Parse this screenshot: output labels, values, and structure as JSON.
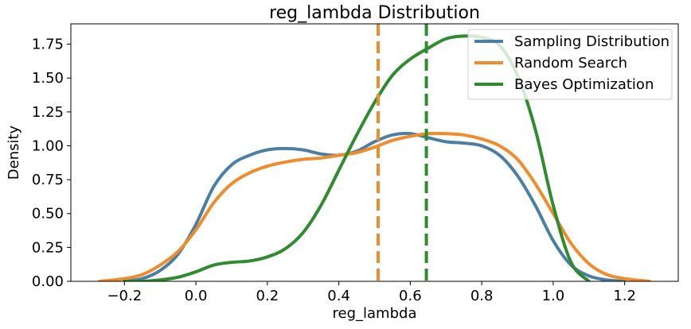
{
  "chart_data": {
    "type": "line",
    "title": "reg_lambda Distribution",
    "xlabel": "reg_lambda",
    "ylabel": "Density",
    "xlim": [
      -0.35,
      1.35
    ],
    "ylim": [
      0,
      1.9
    ],
    "xticks": [
      -0.2,
      0.0,
      0.2,
      0.4,
      0.6,
      0.8,
      1.0,
      1.2
    ],
    "xtick_labels": [
      "−0.2",
      "0.0",
      "0.2",
      "0.4",
      "0.6",
      "0.8",
      "1.0",
      "1.2"
    ],
    "yticks": [
      0,
      0.25,
      0.5,
      0.75,
      1.0,
      1.25,
      1.5,
      1.75
    ],
    "ytick_labels": [
      "0.00",
      "0.25",
      "0.50",
      "0.75",
      "1.00",
      "1.25",
      "1.50",
      "1.75"
    ],
    "grid": false,
    "legend_position": "top-right",
    "series": [
      {
        "name": "Sampling Distribution",
        "color": "#4a7fa3",
        "x": [
          -0.2,
          -0.15,
          -0.1,
          -0.05,
          0.0,
          0.05,
          0.1,
          0.15,
          0.2,
          0.25,
          0.3,
          0.35,
          0.4,
          0.45,
          0.5,
          0.55,
          0.6,
          0.65,
          0.7,
          0.75,
          0.8,
          0.85,
          0.9,
          0.95,
          1.0,
          1.05,
          1.1,
          1.15,
          1.2
        ],
        "y": [
          0.0,
          0.02,
          0.08,
          0.2,
          0.42,
          0.7,
          0.86,
          0.93,
          0.97,
          0.98,
          0.97,
          0.94,
          0.93,
          0.96,
          1.03,
          1.08,
          1.09,
          1.06,
          1.03,
          1.02,
          1.0,
          0.93,
          0.78,
          0.56,
          0.3,
          0.12,
          0.04,
          0.01,
          0.0
        ]
      },
      {
        "name": "Random Search",
        "color": "#f08c2c",
        "x": [
          -0.27,
          -0.2,
          -0.15,
          -0.1,
          -0.05,
          0.0,
          0.05,
          0.1,
          0.15,
          0.2,
          0.25,
          0.3,
          0.35,
          0.4,
          0.45,
          0.5,
          0.55,
          0.6,
          0.65,
          0.7,
          0.75,
          0.8,
          0.85,
          0.9,
          0.95,
          1.0,
          1.05,
          1.1,
          1.15,
          1.2,
          1.27
        ],
        "y": [
          0.0,
          0.02,
          0.05,
          0.12,
          0.22,
          0.38,
          0.58,
          0.72,
          0.8,
          0.85,
          0.88,
          0.9,
          0.91,
          0.93,
          0.95,
          0.99,
          1.04,
          1.07,
          1.09,
          1.09,
          1.08,
          1.05,
          1.0,
          0.9,
          0.72,
          0.5,
          0.28,
          0.13,
          0.05,
          0.02,
          0.0
        ]
      },
      {
        "name": "Bayes Optimization",
        "color": "#2e8b2e",
        "x": [
          -0.2,
          -0.15,
          -0.1,
          -0.05,
          0.0,
          0.05,
          0.1,
          0.15,
          0.2,
          0.25,
          0.3,
          0.35,
          0.4,
          0.45,
          0.5,
          0.55,
          0.6,
          0.65,
          0.7,
          0.75,
          0.8,
          0.85,
          0.9,
          0.95,
          1.0,
          1.05,
          1.1
        ],
        "y": [
          0.0,
          0.0,
          0.01,
          0.03,
          0.07,
          0.12,
          0.14,
          0.15,
          0.18,
          0.24,
          0.36,
          0.56,
          0.82,
          1.08,
          1.32,
          1.52,
          1.64,
          1.72,
          1.79,
          1.81,
          1.8,
          1.74,
          1.52,
          1.12,
          0.56,
          0.14,
          0.0
        ]
      }
    ],
    "vlines": [
      {
        "x": 0.51,
        "color": "#f08c2c",
        "style": "dashed"
      },
      {
        "x": 0.645,
        "color": "#2e8b2e",
        "style": "dashed"
      }
    ]
  }
}
